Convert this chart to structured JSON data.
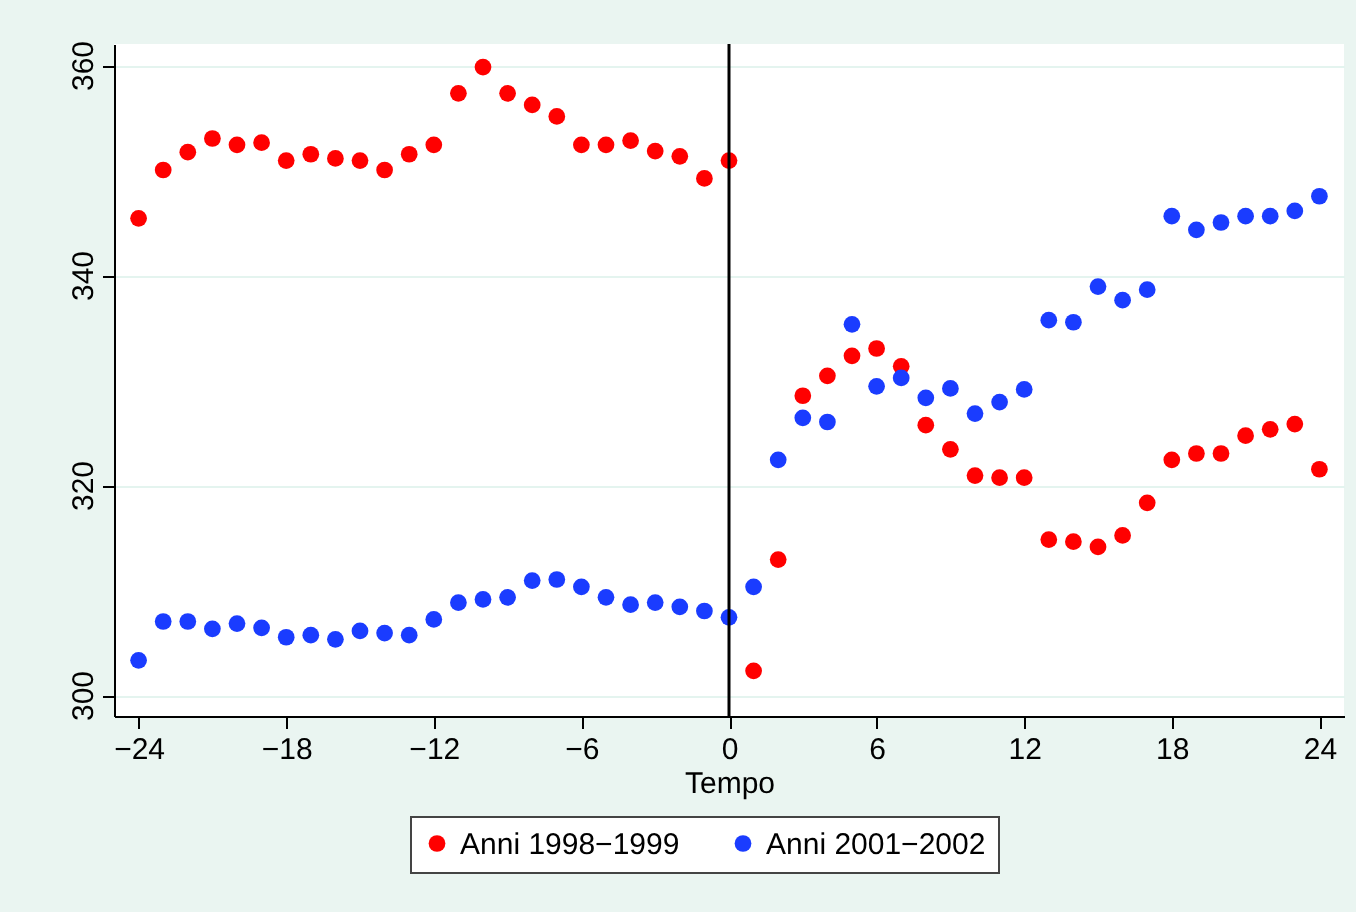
{
  "chart_data": {
    "type": "scatter",
    "xlabel": "Tempo",
    "x": [
      -24,
      -23,
      -22,
      -21,
      -20,
      -19,
      -18,
      -17,
      -16,
      -15,
      -14,
      -13,
      -12,
      -11,
      -10,
      -9,
      -8,
      -7,
      -6,
      -5,
      -4,
      -3,
      -2,
      -1,
      0,
      1,
      2,
      3,
      4,
      5,
      6,
      7,
      8,
      9,
      10,
      11,
      12,
      13,
      14,
      15,
      16,
      17,
      18,
      19,
      20,
      21,
      22,
      23,
      24
    ],
    "series": [
      {
        "name": "Anni 1998−1999",
        "color": "#ff0000",
        "values": [
          345.4,
          350,
          351.7,
          353,
          352.4,
          352.6,
          350.9,
          351.5,
          351.1,
          350.9,
          350,
          351.5,
          352.4,
          357.3,
          359.8,
          357.3,
          356.2,
          355.1,
          352.4,
          352.4,
          352.8,
          351.8,
          351.3,
          349.2,
          350.9,
          302.3,
          312.9,
          328.5,
          330.4,
          332.3,
          333,
          331.3,
          325.7,
          323.4,
          320.9,
          320.7,
          320.7,
          314.8,
          314.6,
          314.1,
          315.2,
          318.3,
          322.4,
          323,
          323,
          324.7,
          325.3,
          325.8,
          321.5
        ]
      },
      {
        "name": "Anni 2001−2002",
        "color": "#1a3cff",
        "values": [
          303.3,
          307,
          307,
          306.3,
          306.8,
          306.4,
          305.5,
          305.7,
          305.3,
          306.1,
          305.9,
          305.7,
          307.2,
          308.8,
          309.1,
          309.3,
          310.9,
          311,
          310.3,
          309.3,
          308.6,
          308.8,
          308.4,
          308,
          307.4,
          310.3,
          322.4,
          326.4,
          326,
          335.3,
          329.4,
          330.2,
          328.3,
          329.2,
          326.8,
          327.9,
          329.1,
          335.7,
          335.5,
          338.9,
          337.6,
          338.6,
          345.6,
          344.3,
          345,
          345.6,
          345.6,
          346.1,
          347.5
        ]
      }
    ],
    "xlim": [
      -25,
      25
    ],
    "ylim": [
      298,
      362
    ],
    "xticks": [
      -24,
      -18,
      -12,
      -6,
      0,
      6,
      12,
      18,
      24
    ],
    "yticks": [
      300,
      320,
      340,
      360
    ],
    "ref_lines": [
      {
        "axis": "x",
        "value": 0,
        "color": "#000000"
      }
    ],
    "grid": "y",
    "legend": "bottom",
    "marker": "circle"
  }
}
